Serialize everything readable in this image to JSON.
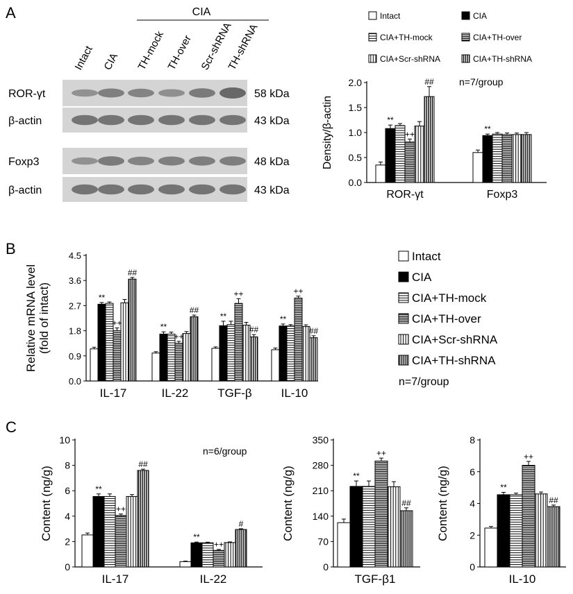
{
  "panels": {
    "a": "A",
    "b": "B",
    "c": "C"
  },
  "colors": {
    "intact": "#ffffff",
    "cia": "#000000",
    "stroke": "#000000",
    "blot_bg": "#d4d4d4",
    "band": "#555555"
  },
  "patterns": [
    "none",
    "solid",
    "h-stripes",
    "h-stripes-dense",
    "v-stripes",
    "v-stripes-dense"
  ],
  "western": {
    "group_label": "CIA",
    "lane_labels": [
      "Intact",
      "CIA",
      "TH-mock",
      "TH-over",
      "Scr-shRNA",
      "TH-shRNA"
    ],
    "rows": [
      {
        "protein": "ROR-γt",
        "size": "58 kDa",
        "intensity": [
          0.45,
          0.7,
          0.65,
          0.5,
          0.75,
          1.0
        ]
      },
      {
        "protein": "β-actin",
        "size": "43 kDa",
        "intensity": [
          0.85,
          0.85,
          0.85,
          0.85,
          0.85,
          0.85
        ]
      },
      {
        "protein": "Foxp3",
        "size": "48 kDa",
        "intensity": [
          0.45,
          0.75,
          0.65,
          0.7,
          0.72,
          0.72
        ]
      },
      {
        "protein": "β-actin",
        "size": "43 kDa",
        "intensity": [
          0.85,
          0.85,
          0.85,
          0.85,
          0.85,
          0.85
        ]
      }
    ]
  },
  "chart_data": [
    {
      "type": "bar",
      "categories": [
        "ROR-γt",
        "Foxp3"
      ],
      "ylabel": "Density/β-actin",
      "xlabel": "",
      "ylim": [
        0,
        2.0
      ],
      "yticks": [
        "0.0",
        "0.5",
        "1.0",
        "1.5",
        "2.0"
      ],
      "note": "n=7/group",
      "legend": [
        "Intact",
        "CIA",
        "CIA+TH-mock",
        "CIA+TH-over",
        "CIA+Scr-shRNA",
        "CIA+TH-shRNA"
      ],
      "series": [
        {
          "name": "Intact",
          "values": [
            0.35,
            0.6
          ],
          "errors": [
            0.06,
            0.05
          ]
        },
        {
          "name": "CIA",
          "values": [
            1.08,
            0.94
          ],
          "errors": [
            0.07,
            0.03
          ]
        },
        {
          "name": "CIA+TH-mock",
          "values": [
            1.14,
            0.97
          ],
          "errors": [
            0.04,
            0.03
          ]
        },
        {
          "name": "CIA+TH-over",
          "values": [
            0.81,
            0.96
          ],
          "errors": [
            0.06,
            0.03
          ]
        },
        {
          "name": "CIA+Scr-shRNA",
          "values": [
            1.13,
            0.96
          ],
          "errors": [
            0.09,
            0.03
          ]
        },
        {
          "name": "CIA+TH-shRNA",
          "values": [
            1.72,
            0.96
          ],
          "errors": [
            0.2,
            0.04
          ]
        }
      ],
      "annotations": [
        {
          "category": 0,
          "series": 1,
          "text": "**"
        },
        {
          "category": 0,
          "series": 3,
          "text": "++"
        },
        {
          "category": 0,
          "series": 5,
          "text": "##"
        },
        {
          "category": 1,
          "series": 1,
          "text": "**"
        }
      ]
    },
    {
      "type": "bar",
      "categories": [
        "IL-17",
        "IL-22",
        "TGF-β",
        "IL-10"
      ],
      "ylabel": "Relative mRNA level",
      "ylabel2": "(fold of intact)",
      "xlabel": "",
      "ylim": [
        0,
        4.5
      ],
      "yticks": [
        "0.0",
        "0.9",
        "1.8",
        "2.7",
        "3.6",
        "4.5"
      ],
      "note": "n=7/group",
      "legend": [
        "Intact",
        "CIA",
        "CIA+TH-mock",
        "CIA+TH-over",
        "CIA+Scr-shRNA",
        "CIA+TH-shRNA"
      ],
      "series": [
        {
          "name": "Intact",
          "values": [
            1.15,
            1.0,
            1.17,
            1.12
          ],
          "errors": [
            0.06,
            0.05,
            0.05,
            0.06
          ]
        },
        {
          "name": "CIA",
          "values": [
            2.75,
            1.68,
            1.98,
            1.97
          ],
          "errors": [
            0.06,
            0.08,
            0.16,
            0.07
          ]
        },
        {
          "name": "CIA+TH-mock",
          "values": [
            2.78,
            1.68,
            2.02,
            1.97
          ],
          "errors": [
            0.05,
            0.07,
            0.12,
            0.05
          ]
        },
        {
          "name": "CIA+TH-over",
          "values": [
            1.8,
            1.35,
            2.78,
            2.97
          ],
          "errors": [
            0.1,
            0.07,
            0.17,
            0.07
          ]
        },
        {
          "name": "CIA+Scr-shRNA",
          "values": [
            2.8,
            1.7,
            2.0,
            1.95
          ],
          "errors": [
            0.12,
            0.07,
            0.1,
            0.06
          ]
        },
        {
          "name": "CIA+TH-shRNA",
          "values": [
            3.65,
            2.3,
            1.58,
            1.55
          ],
          "errors": [
            0.06,
            0.06,
            0.08,
            0.07
          ]
        }
      ],
      "annotations": [
        {
          "category": 0,
          "series": 1,
          "text": "**"
        },
        {
          "category": 0,
          "series": 3,
          "text": "++"
        },
        {
          "category": 0,
          "series": 5,
          "text": "##"
        },
        {
          "category": 1,
          "series": 1,
          "text": "**"
        },
        {
          "category": 1,
          "series": 3,
          "text": "++"
        },
        {
          "category": 1,
          "series": 5,
          "text": "##"
        },
        {
          "category": 2,
          "series": 1,
          "text": "**"
        },
        {
          "category": 2,
          "series": 3,
          "text": "++"
        },
        {
          "category": 2,
          "series": 5,
          "text": "##"
        },
        {
          "category": 3,
          "series": 1,
          "text": "**"
        },
        {
          "category": 3,
          "series": 3,
          "text": "++"
        },
        {
          "category": 3,
          "series": 5,
          "text": "##"
        }
      ]
    },
    {
      "type": "bar",
      "categories": [
        "IL-17",
        "IL-22"
      ],
      "ylabel": "Content (ng/g)",
      "xlabel": "",
      "ylim": [
        0,
        10
      ],
      "yticks": [
        "0",
        "2",
        "4",
        "6",
        "8",
        "10"
      ],
      "note": "n=6/group",
      "series": [
        {
          "name": "Intact",
          "values": [
            2.52,
            0.42
          ],
          "errors": [
            0.15,
            0.04
          ]
        },
        {
          "name": "CIA",
          "values": [
            5.55,
            1.9
          ],
          "errors": [
            0.2,
            0.06
          ]
        },
        {
          "name": "CIA+TH-mock",
          "values": [
            5.55,
            1.9
          ],
          "errors": [
            0.2,
            0.05
          ]
        },
        {
          "name": "CIA+TH-over",
          "values": [
            4.05,
            1.3
          ],
          "errors": [
            0.12,
            0.08
          ]
        },
        {
          "name": "CIA+Scr-shRNA",
          "values": [
            5.55,
            1.92
          ],
          "errors": [
            0.15,
            0.05
          ]
        },
        {
          "name": "CIA+TH-shRNA",
          "values": [
            7.6,
            2.95
          ],
          "errors": [
            0.1,
            0.06
          ]
        }
      ],
      "annotations": [
        {
          "category": 0,
          "series": 1,
          "text": "**"
        },
        {
          "category": 0,
          "series": 3,
          "text": "++"
        },
        {
          "category": 0,
          "series": 5,
          "text": "##"
        },
        {
          "category": 1,
          "series": 1,
          "text": "**"
        },
        {
          "category": 1,
          "series": 3,
          "text": "++"
        },
        {
          "category": 1,
          "series": 5,
          "text": "#"
        }
      ]
    },
    {
      "type": "bar",
      "categories": [
        "TGF-β1"
      ],
      "ylabel": "Content (ng/g)",
      "xlabel": "",
      "ylim": [
        0,
        350
      ],
      "yticks": [
        "0",
        "70",
        "140",
        "210",
        "280",
        "350"
      ],
      "series": [
        {
          "name": "Intact",
          "values": [
            122
          ],
          "errors": [
            10
          ]
        },
        {
          "name": "CIA",
          "values": [
            222
          ],
          "errors": [
            15
          ]
        },
        {
          "name": "CIA+TH-mock",
          "values": [
            222
          ],
          "errors": [
            15
          ]
        },
        {
          "name": "CIA+TH-over",
          "values": [
            292
          ],
          "errors": [
            8
          ]
        },
        {
          "name": "CIA+Scr-shRNA",
          "values": [
            221
          ],
          "errors": [
            14
          ]
        },
        {
          "name": "CIA+TH-shRNA",
          "values": [
            155
          ],
          "errors": [
            8
          ]
        }
      ],
      "annotations": [
        {
          "category": 0,
          "series": 1,
          "text": "**"
        },
        {
          "category": 0,
          "series": 3,
          "text": "++"
        },
        {
          "category": 0,
          "series": 5,
          "text": "##"
        }
      ]
    },
    {
      "type": "bar",
      "categories": [
        "IL-10"
      ],
      "ylabel": "Content (ng/g)",
      "xlabel": "",
      "ylim": [
        0,
        8
      ],
      "yticks": [
        "0",
        "2",
        "4",
        "6",
        "8"
      ],
      "series": [
        {
          "name": "Intact",
          "values": [
            2.45
          ],
          "errors": [
            0.1
          ]
        },
        {
          "name": "CIA",
          "values": [
            4.55
          ],
          "errors": [
            0.15
          ]
        },
        {
          "name": "CIA+TH-mock",
          "values": [
            4.55
          ],
          "errors": [
            0.1
          ]
        },
        {
          "name": "CIA+TH-over",
          "values": [
            6.4
          ],
          "errors": [
            0.25
          ]
        },
        {
          "name": "CIA+Scr-shRNA",
          "values": [
            4.6
          ],
          "errors": [
            0.12
          ]
        },
        {
          "name": "CIA+TH-shRNA",
          "values": [
            3.8
          ],
          "errors": [
            0.1
          ]
        }
      ],
      "annotations": [
        {
          "category": 0,
          "series": 1,
          "text": "**"
        },
        {
          "category": 0,
          "series": 3,
          "text": "++"
        },
        {
          "category": 0,
          "series": 5,
          "text": "##"
        }
      ]
    }
  ]
}
